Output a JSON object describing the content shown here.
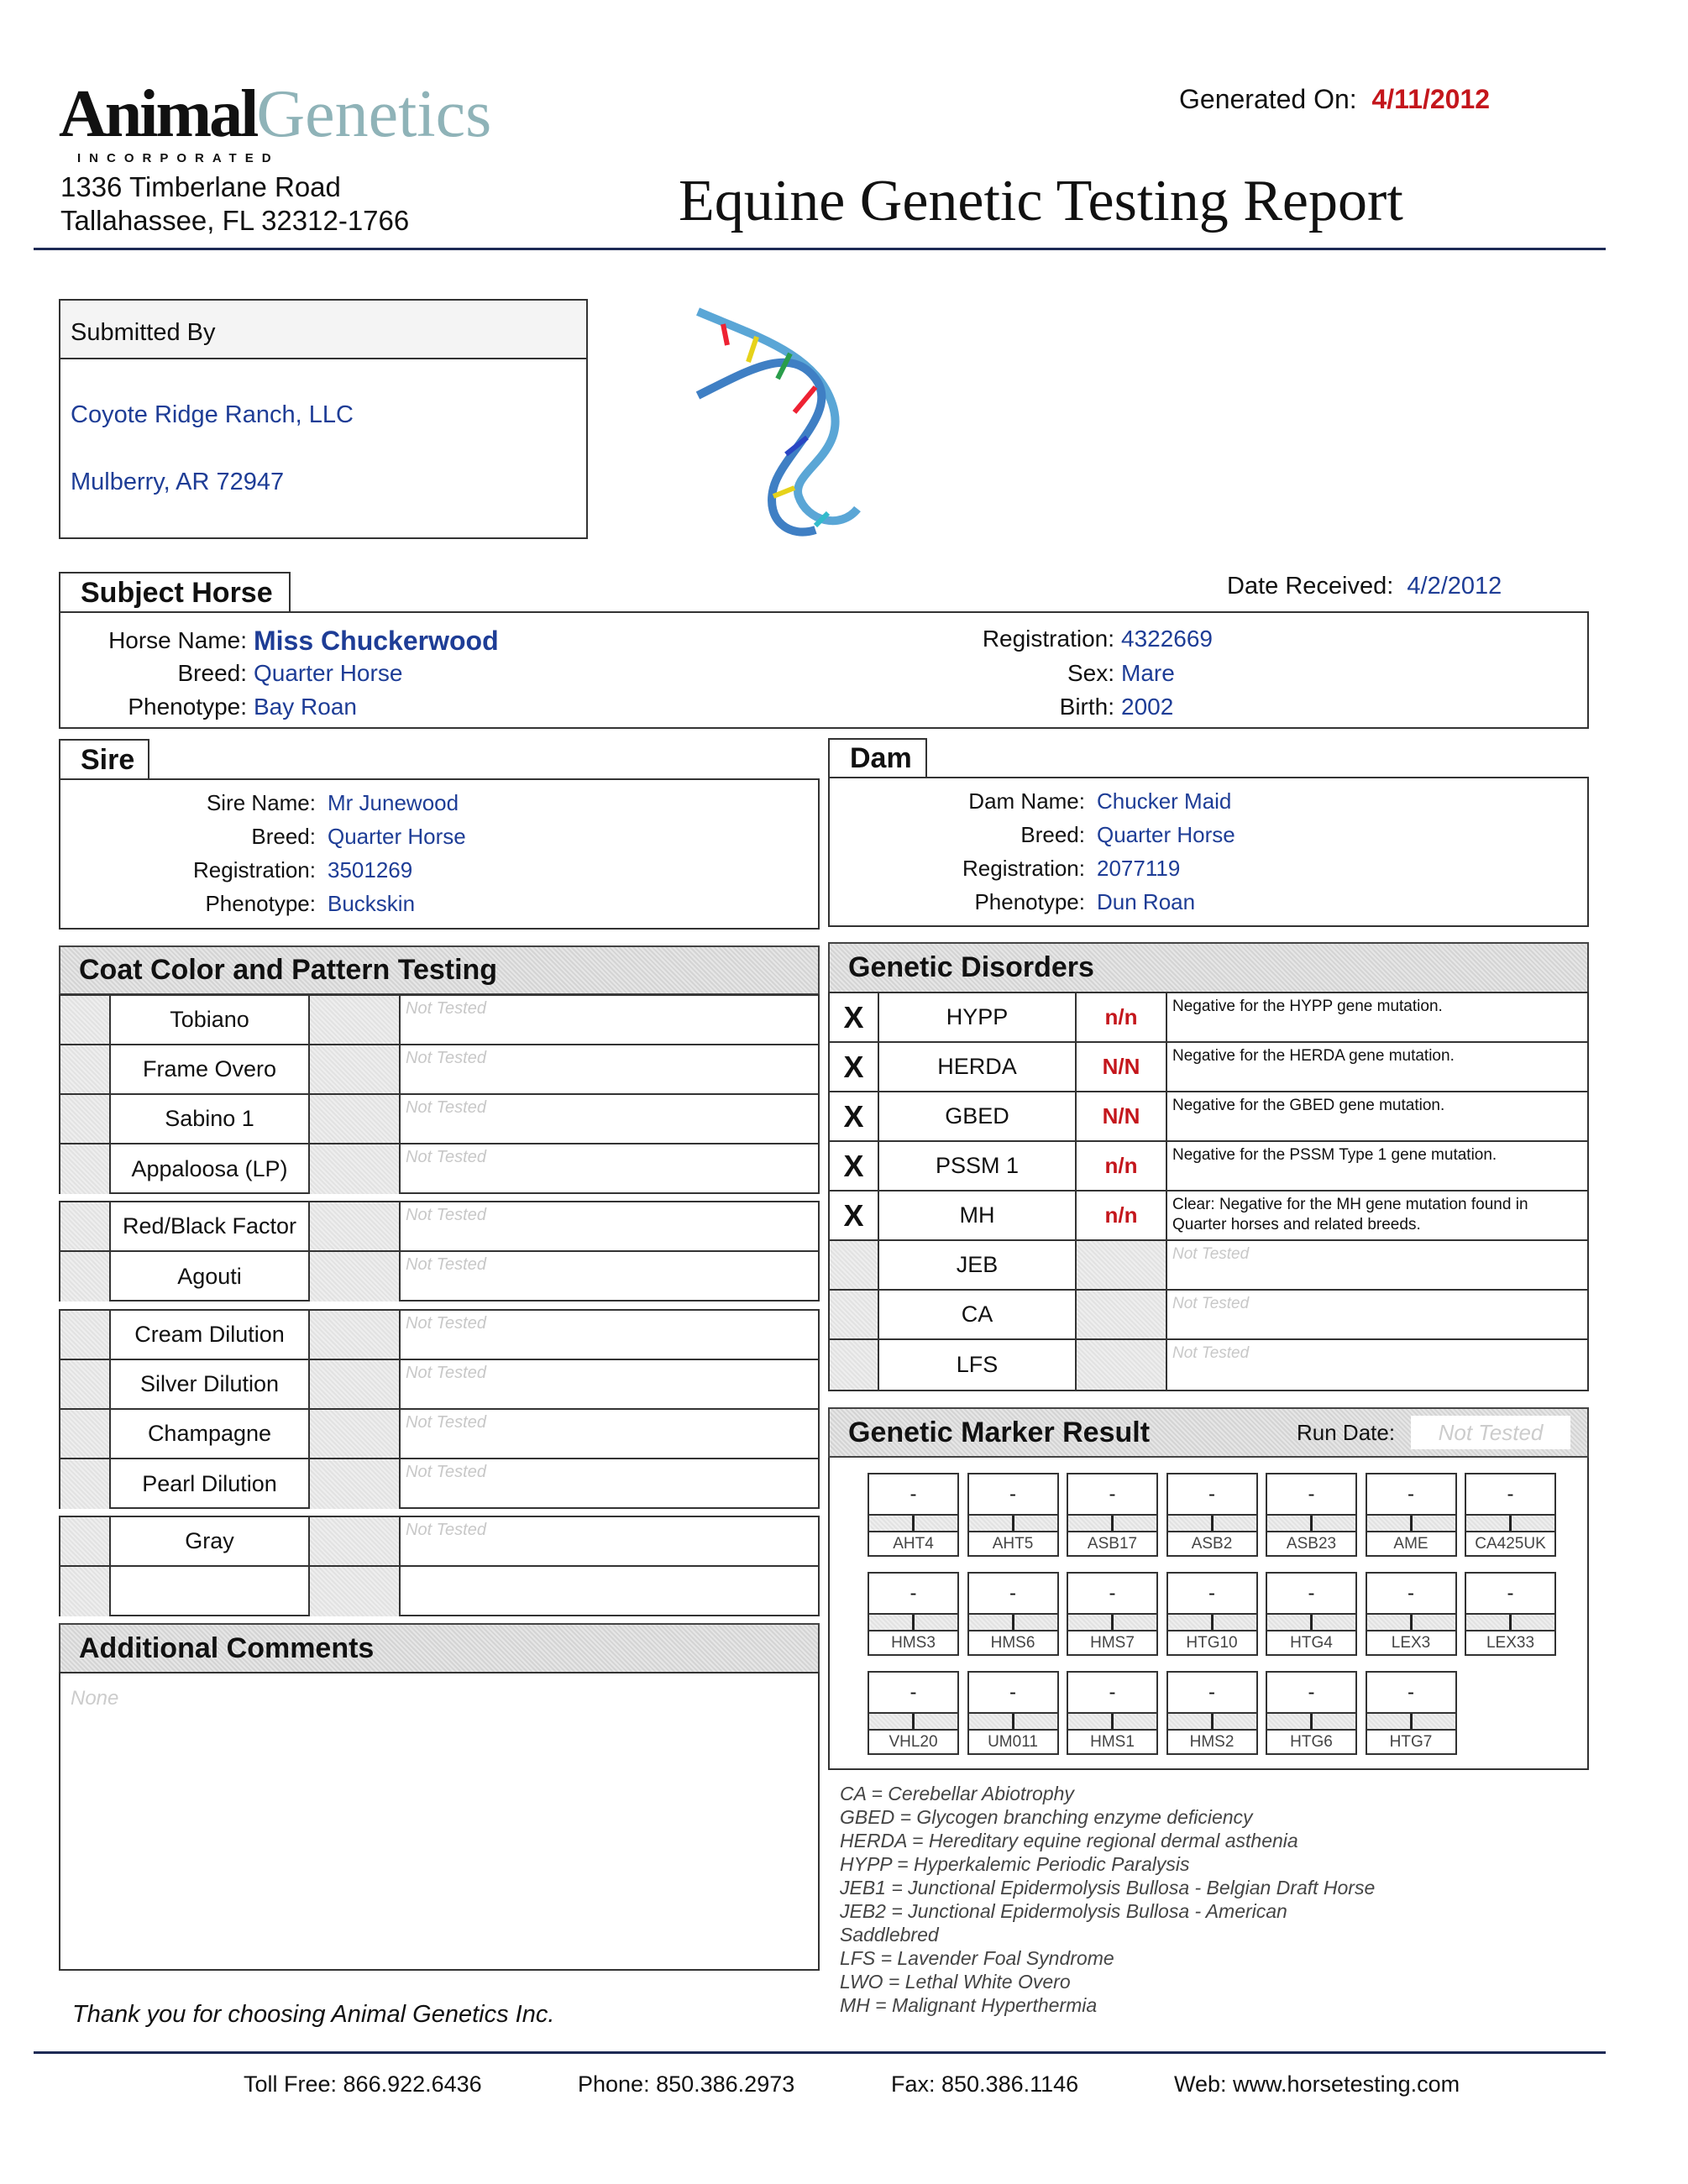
{
  "header": {
    "logo_text_1": "Animal",
    "logo_text_2": "Genetics",
    "logo_sub": "INCORPORATED",
    "address_line1": "1336 Timberlane Road",
    "address_line2": "Tallahassee, FL 32312-1766",
    "generated_label": "Generated On:",
    "generated_date": "4/11/2012",
    "title": "Equine Genetic Testing Report"
  },
  "submitted": {
    "label": "Submitted By",
    "name": "Coyote Ridge Ranch, LLC",
    "city": "Mulberry,  AR 72947"
  },
  "subject": {
    "tab": "Subject Horse",
    "date_received_label": "Date Received:",
    "date_received": "4/2/2012",
    "horse_name_label": "Horse Name:",
    "horse_name": "Miss Chuckerwood",
    "breed_label": "Breed:",
    "breed": "Quarter Horse",
    "phenotype_label": "Phenotype:",
    "phenotype": "Bay Roan",
    "registration_label": "Registration:",
    "registration": "4322669",
    "sex_label": "Sex:",
    "sex": "Mare",
    "birth_label": "Birth:",
    "birth": "2002"
  },
  "sire": {
    "tab": "Sire",
    "fields": [
      {
        "label": "Sire Name:",
        "value": "Mr Junewood"
      },
      {
        "label": "Breed:",
        "value": "Quarter Horse"
      },
      {
        "label": "Registration:",
        "value": "3501269"
      },
      {
        "label": "Phenotype:",
        "value": "Buckskin"
      }
    ]
  },
  "dam": {
    "tab": "Dam",
    "fields": [
      {
        "label": "Dam Name:",
        "value": "Chucker Maid"
      },
      {
        "label": "Breed:",
        "value": "Quarter Horse"
      },
      {
        "label": "Registration:",
        "value": "2077119"
      },
      {
        "label": "Phenotype:",
        "value": "Dun Roan"
      }
    ]
  },
  "coat": {
    "title": "Coat Color and Pattern Testing",
    "groups": [
      [
        {
          "name": "Tobiano",
          "status": "Not Tested"
        },
        {
          "name": "Frame Overo",
          "status": "Not Tested"
        },
        {
          "name": "Sabino 1",
          "status": "Not Tested"
        },
        {
          "name": "Appaloosa (LP)",
          "status": "Not Tested"
        }
      ],
      [
        {
          "name": "Red/Black Factor",
          "status": "Not Tested"
        },
        {
          "name": "Agouti",
          "status": "Not Tested"
        }
      ],
      [
        {
          "name": "Cream Dilution",
          "status": "Not Tested"
        },
        {
          "name": "Silver Dilution",
          "status": "Not Tested"
        },
        {
          "name": "Champagne",
          "status": "Not Tested"
        },
        {
          "name": "Pearl Dilution",
          "status": "Not Tested"
        }
      ],
      [
        {
          "name": "Gray",
          "status": "Not Tested"
        },
        {
          "name": "",
          "status": ""
        }
      ]
    ]
  },
  "comments": {
    "title": "Additional Comments",
    "text": "None"
  },
  "thank_you": "Thank you for choosing Animal Genetics Inc.",
  "disorders": {
    "title": "Genetic Disorders",
    "rows": [
      {
        "mark": "X",
        "name": "HYPP",
        "result": "n/n",
        "desc": "Negative for the HYPP gene mutation."
      },
      {
        "mark": "X",
        "name": "HERDA",
        "result": "N/N",
        "desc": "Negative for the HERDA gene mutation."
      },
      {
        "mark": "X",
        "name": "GBED",
        "result": "N/N",
        "desc": "Negative for the GBED gene mutation."
      },
      {
        "mark": "X",
        "name": "PSSM 1",
        "result": "n/n",
        "desc": "Negative for the PSSM Type 1 gene mutation."
      },
      {
        "mark": "X",
        "name": "MH",
        "result": "n/n",
        "desc": "Clear: Negative for the MH gene mutation found in Quarter horses and related breeds."
      },
      {
        "mark": "",
        "name": "JEB",
        "result": "",
        "desc": "Not Tested"
      },
      {
        "mark": "",
        "name": "CA",
        "result": "",
        "desc": "Not Tested"
      },
      {
        "mark": "",
        "name": "LFS",
        "result": "",
        "desc": "Not Tested"
      }
    ]
  },
  "markers": {
    "title": "Genetic Marker Result",
    "run_date_label": "Run Date:",
    "run_date": "Not Tested",
    "items": [
      {
        "name": "AHT4",
        "value": "-"
      },
      {
        "name": "AHT5",
        "value": "-"
      },
      {
        "name": "ASB17",
        "value": "-"
      },
      {
        "name": "ASB2",
        "value": "-"
      },
      {
        "name": "ASB23",
        "value": "-"
      },
      {
        "name": "AME",
        "value": "-"
      },
      {
        "name": "CA425UK",
        "value": "-"
      },
      {
        "name": "HMS3",
        "value": "-"
      },
      {
        "name": "HMS6",
        "value": "-"
      },
      {
        "name": "HMS7",
        "value": "-"
      },
      {
        "name": "HTG10",
        "value": "-"
      },
      {
        "name": "HTG4",
        "value": "-"
      },
      {
        "name": "LEX3",
        "value": "-"
      },
      {
        "name": "LEX33",
        "value": "-"
      },
      {
        "name": "VHL20",
        "value": "-"
      },
      {
        "name": "UM011",
        "value": "-"
      },
      {
        "name": "HMS1",
        "value": "-"
      },
      {
        "name": "HMS2",
        "value": "-"
      },
      {
        "name": "HTG6",
        "value": "-"
      },
      {
        "name": "HTG7",
        "value": "-"
      }
    ]
  },
  "legend": [
    "CA = Cerebellar Abiotrophy",
    "GBED = Glycogen branching enzyme deficiency",
    "HERDA = Hereditary equine regional dermal asthenia",
    "HYPP = Hyperkalemic Periodic Paralysis",
    "JEB1 = Junctional Epidermolysis Bullosa - Belgian Draft Horse",
    "JEB2 = Junctional Epidermolysis Bullosa - American",
    "Saddlebred",
    "LFS = Lavender Foal Syndrome",
    "LWO = Lethal White Overo",
    "MH = Malignant Hyperthermia"
  ],
  "footer": {
    "toll_free": "Toll Free: 866.922.6436",
    "phone": "Phone: 850.386.2973",
    "fax": "Fax: 850.386.1146",
    "web": "Web: www.horsetesting.com"
  },
  "colors": {
    "value_blue": "#1e3d96",
    "accent_red": "#c4161c",
    "logo_teal": "#8fb3b8"
  }
}
